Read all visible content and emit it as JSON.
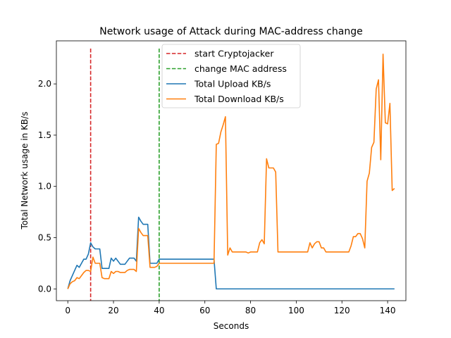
{
  "chart_data": {
    "type": "line",
    "title": "Network usage of Attack during MAC-address change",
    "xlabel": "Seconds",
    "ylabel": "Total Network usage in KB/s",
    "xlim": [
      -5,
      148
    ],
    "ylim": [
      -0.115,
      2.42
    ],
    "xticks": [
      0,
      20,
      40,
      60,
      80,
      100,
      120,
      140
    ],
    "yticks": [
      0.0,
      0.5,
      1.0,
      1.5,
      2.0
    ],
    "xtick_labels": [
      "0",
      "20",
      "40",
      "60",
      "80",
      "100",
      "120",
      "140"
    ],
    "ytick_labels": [
      "0.0",
      "0.5",
      "1.0",
      "1.5",
      "2.0"
    ],
    "grid": false,
    "legend_position": "top-center",
    "vlines": [
      {
        "name": "start Cryptojacker",
        "x": 10,
        "color": "#d62728",
        "style": "dashed"
      },
      {
        "name": "change MAC address",
        "x": 40,
        "color": "#2ca02c",
        "style": "dashed"
      }
    ],
    "series": [
      {
        "name": "Total Upload KB/s",
        "color": "#1f77b4",
        "x": [
          0,
          1,
          2,
          3,
          4,
          5,
          6,
          7,
          8,
          9,
          10,
          11,
          12,
          13,
          14,
          15,
          16,
          17,
          18,
          19,
          20,
          21,
          22,
          23,
          24,
          25,
          26,
          27,
          28,
          29,
          30,
          31,
          32,
          33,
          34,
          35,
          36,
          37,
          38,
          39,
          40,
          41,
          50,
          64,
          65,
          70,
          80,
          100,
          120,
          143
        ],
        "values": [
          0.0,
          0.08,
          0.13,
          0.18,
          0.23,
          0.21,
          0.25,
          0.29,
          0.29,
          0.34,
          0.45,
          0.41,
          0.39,
          0.39,
          0.39,
          0.2,
          0.2,
          0.2,
          0.2,
          0.3,
          0.27,
          0.3,
          0.27,
          0.24,
          0.24,
          0.24,
          0.27,
          0.3,
          0.3,
          0.3,
          0.27,
          0.7,
          0.66,
          0.63,
          0.63,
          0.63,
          0.25,
          0.25,
          0.25,
          0.25,
          0.29,
          0.29,
          0.29,
          0.29,
          0.0,
          0.0,
          0.0,
          0.0,
          0.0,
          0.0
        ]
      },
      {
        "name": "Total Download KB/s",
        "color": "#ff7f0e",
        "x": [
          0,
          1,
          2,
          3,
          4,
          5,
          6,
          7,
          8,
          9,
          10,
          11,
          12,
          13,
          14,
          15,
          16,
          17,
          18,
          19,
          20,
          21,
          22,
          23,
          24,
          25,
          26,
          27,
          28,
          29,
          30,
          31,
          32,
          33,
          34,
          35,
          36,
          37,
          38,
          39,
          40,
          41,
          50,
          63,
          64,
          65,
          66,
          67,
          68,
          69,
          70,
          71,
          72,
          73,
          74,
          75,
          76,
          77,
          78,
          79,
          80,
          81,
          82,
          83,
          84,
          85,
          86,
          87,
          88,
          89,
          90,
          91,
          92,
          93,
          94,
          95,
          96,
          97,
          98,
          99,
          100,
          101,
          102,
          103,
          104,
          105,
          106,
          107,
          108,
          109,
          110,
          111,
          112,
          113,
          114,
          115,
          116,
          117,
          118,
          119,
          120,
          121,
          122,
          123,
          124,
          125,
          126,
          127,
          128,
          129,
          130,
          131,
          132,
          133,
          134,
          135,
          136,
          137,
          138,
          139,
          140,
          141,
          142,
          143
        ],
        "values": [
          0.0,
          0.05,
          0.07,
          0.08,
          0.11,
          0.1,
          0.13,
          0.16,
          0.18,
          0.18,
          0.17,
          0.31,
          0.25,
          0.25,
          0.25,
          0.11,
          0.1,
          0.1,
          0.1,
          0.17,
          0.15,
          0.17,
          0.17,
          0.16,
          0.16,
          0.16,
          0.18,
          0.19,
          0.19,
          0.19,
          0.17,
          0.59,
          0.55,
          0.52,
          0.52,
          0.52,
          0.21,
          0.21,
          0.21,
          0.22,
          0.25,
          0.25,
          0.25,
          0.25,
          0.25,
          1.41,
          1.42,
          1.53,
          1.6,
          1.68,
          0.33,
          0.4,
          0.36,
          0.36,
          0.36,
          0.36,
          0.36,
          0.36,
          0.36,
          0.35,
          0.36,
          0.36,
          0.36,
          0.36,
          0.45,
          0.48,
          0.44,
          1.27,
          1.18,
          1.18,
          1.18,
          1.14,
          0.36,
          0.36,
          0.36,
          0.36,
          0.36,
          0.36,
          0.36,
          0.36,
          0.36,
          0.36,
          0.36,
          0.36,
          0.36,
          0.36,
          0.45,
          0.4,
          0.44,
          0.46,
          0.46,
          0.4,
          0.4,
          0.36,
          0.36,
          0.36,
          0.36,
          0.36,
          0.36,
          0.36,
          0.36,
          0.36,
          0.36,
          0.36,
          0.42,
          0.51,
          0.51,
          0.54,
          0.54,
          0.49,
          0.4,
          1.05,
          1.13,
          1.38,
          1.43,
          1.95,
          2.04,
          1.26,
          2.29,
          1.62,
          1.61,
          1.81,
          0.96,
          0.98
        ]
      }
    ]
  }
}
